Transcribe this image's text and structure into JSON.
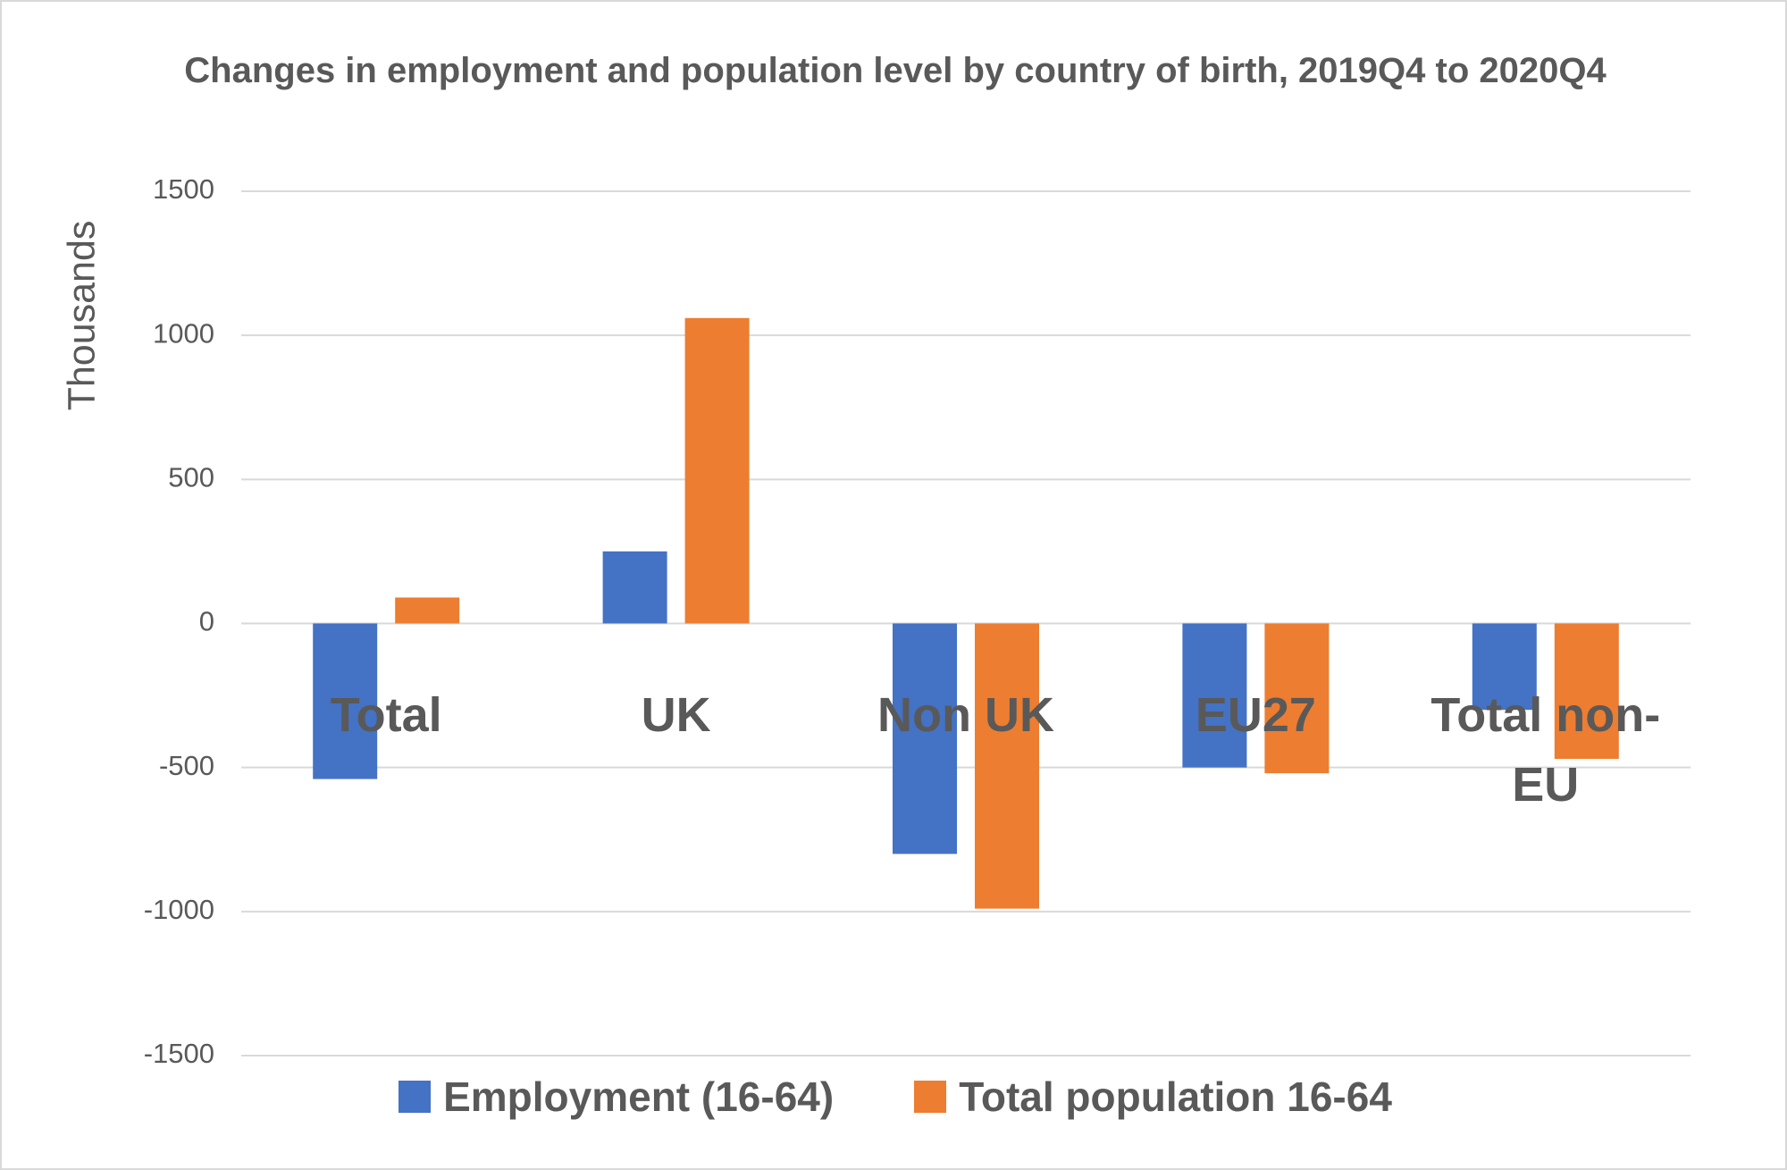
{
  "chart_data": {
    "type": "bar",
    "title": "Changes in employment and population level by country of birth, 2019Q4 to 2020Q4",
    "y_label": "Thousands",
    "categories": [
      "Total",
      "UK",
      "Non UK",
      "EU27",
      "Total non-EU"
    ],
    "series": [
      {
        "name": "Employment (16-64)",
        "color": "#4472c4",
        "values": [
          -540,
          250,
          -800,
          -500,
          -300
        ]
      },
      {
        "name": "Total population 16-64",
        "color": "#ed7d31",
        "values": [
          90,
          1060,
          -990,
          -520,
          -470
        ]
      }
    ],
    "ylim": [
      -1500,
      1500
    ],
    "yticks": [
      -1500,
      -1000,
      -500,
      0,
      500,
      1000,
      1500
    ],
    "grid": true,
    "legend": "bottom"
  }
}
